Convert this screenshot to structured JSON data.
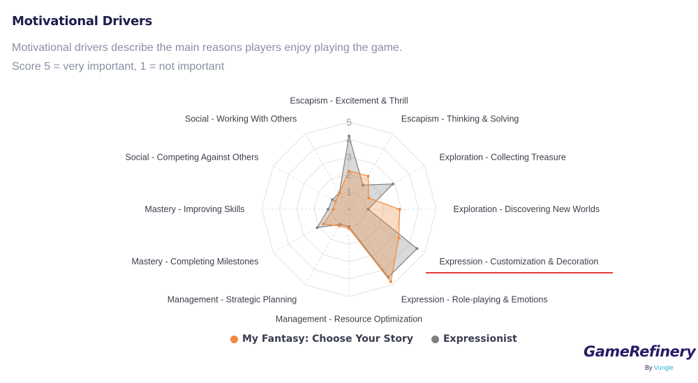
{
  "header": {
    "title": "Motivational Drivers",
    "subtitle_line1": "Motivational drivers describe the main reasons players enjoy playing the game.",
    "subtitle_line2": "Score 5 = very important, 1 = not important"
  },
  "chart_data": {
    "type": "radar",
    "axes": [
      "Escapism - Excitement & Thrill",
      "Escapism - Thinking & Solving",
      "Exploration - Collecting Treasure",
      "Exploration - Discovering New Worlds",
      "Expression - Customization & Decoration",
      "Expression - Role-playing & Emotions",
      "Management - Resource Optimization",
      "Management - Strategic Planning",
      "Mastery - Completing Milestones",
      "Mastery - Improving Skills",
      "Social - Competing Against Others",
      "Social - Working With Others"
    ],
    "ticks": [
      "1",
      "2",
      "3",
      "4",
      "5"
    ],
    "range": [
      0,
      5
    ],
    "series": [
      {
        "name": "Expressionist",
        "color": "#808080",
        "values": [
          4.2,
          1.6,
          2.9,
          1.1,
          4.5,
          4.5,
          1,
          1,
          2.1,
          1.2,
          1.1,
          1.1
        ]
      },
      {
        "name": "My Fantasy: Choose Your Story",
        "color": "#f08a3c",
        "values": [
          2.2,
          2.2,
          1.3,
          2.9,
          3.3,
          4.8,
          1.1,
          1.1,
          1.7,
          0.9,
          0.9,
          1.1
        ]
      }
    ]
  },
  "legend": [
    {
      "label": "My Fantasy: Choose Your Story",
      "color": "#f08a3c"
    },
    {
      "label": "Expressionist",
      "color": "#808080"
    }
  ],
  "logo": {
    "main": "GameRefinery",
    "by": "By ",
    "brand": "Vungle"
  }
}
